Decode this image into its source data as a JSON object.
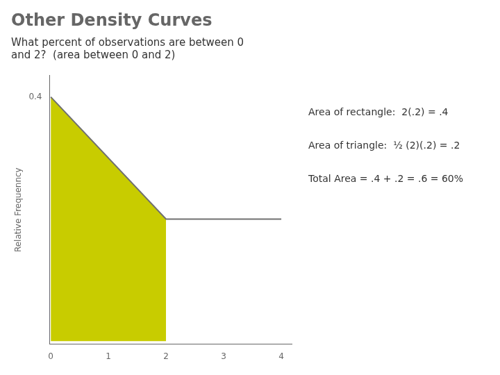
{
  "chart_data": {
    "type": "line",
    "title": "Other Density Curves",
    "subtitle": [
      "What percent of observations are between 0",
      "and 2?  (area between 0 and 2)"
    ],
    "ylabel": "Relative Frequenncy",
    "annotations": [
      "Area of rectangle:  2(.2) = .4",
      "Area of triangle:  ½ (2)(.2) = .2",
      "Total Area = .4 + .2 = .6 = 60%"
    ],
    "series": [
      {
        "type": "area",
        "color": "#c8cc00",
        "x": [
          0,
          2
        ],
        "values": [
          0.4,
          0.2
        ]
      },
      {
        "type": "line",
        "color": "#707070",
        "x": [
          0,
          2,
          4
        ],
        "values": [
          0.4,
          0.2,
          0.2
        ]
      }
    ],
    "xlim": [
      -0.02,
      4.18
    ],
    "xticks": [
      0,
      1,
      2,
      3,
      4
    ],
    "ylim": [
      -0.005,
      0.435
    ],
    "yticks": [
      0.4
    ],
    "grid": false
  }
}
